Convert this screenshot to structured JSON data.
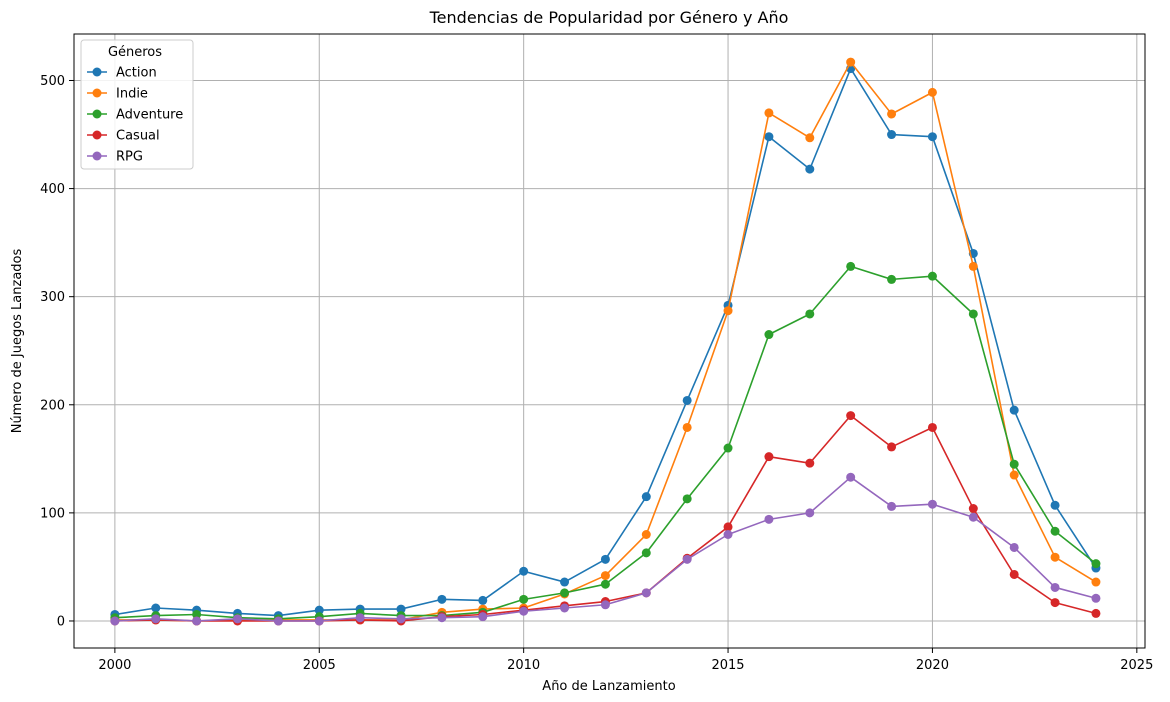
{
  "chart_data": {
    "type": "line",
    "title": "Tendencias de Popularidad por Género y Año",
    "xlabel": "Año de Lanzamiento",
    "ylabel": "Número de Juegos Lanzados",
    "xlim": [
      1999,
      2025.2
    ],
    "ylim": [
      -25,
      543
    ],
    "xticks": [
      2000,
      2005,
      2010,
      2015,
      2020,
      2025
    ],
    "yticks": [
      0,
      100,
      200,
      300,
      400,
      500
    ],
    "grid": true,
    "legend": {
      "title": "Géneros",
      "placement": "top-left"
    },
    "x": [
      2000,
      2001,
      2002,
      2003,
      2004,
      2005,
      2006,
      2007,
      2008,
      2009,
      2010,
      2011,
      2012,
      2013,
      2014,
      2015,
      2016,
      2017,
      2018,
      2019,
      2020,
      2021,
      2022,
      2023,
      2024
    ],
    "series": [
      {
        "name": "Action",
        "color": "#1f77b4",
        "values": [
          6,
          12,
          10,
          7,
          5,
          10,
          11,
          11,
          20,
          19,
          46,
          36,
          57,
          115,
          204,
          292,
          448,
          418,
          511,
          450,
          448,
          340,
          195,
          107,
          49
        ]
      },
      {
        "name": "Indie",
        "color": "#ff7f0e",
        "values": [
          1,
          1,
          0,
          1,
          1,
          1,
          1,
          1,
          8,
          11,
          12,
          25,
          42,
          80,
          179,
          287,
          470,
          447,
          517,
          469,
          489,
          328,
          135,
          59,
          36
        ]
      },
      {
        "name": "Adventure",
        "color": "#2ca02c",
        "values": [
          3,
          5,
          6,
          3,
          2,
          4,
          7,
          5,
          5,
          8,
          20,
          26,
          34,
          63,
          113,
          160,
          265,
          284,
          328,
          316,
          319,
          284,
          145,
          83,
          53
        ]
      },
      {
        "name": "Casual",
        "color": "#d62728",
        "values": [
          0,
          1,
          0,
          0,
          0,
          0,
          1,
          0,
          4,
          6,
          10,
          14,
          18,
          26,
          58,
          87,
          152,
          146,
          190,
          161,
          179,
          104,
          43,
          17,
          7
        ]
      },
      {
        "name": "RPG",
        "color": "#9467bd",
        "values": [
          0,
          2,
          0,
          2,
          0,
          0,
          3,
          2,
          3,
          4,
          9,
          12,
          15,
          26,
          57,
          80,
          94,
          100,
          133,
          106,
          108,
          96,
          68,
          31,
          21
        ]
      }
    ]
  }
}
